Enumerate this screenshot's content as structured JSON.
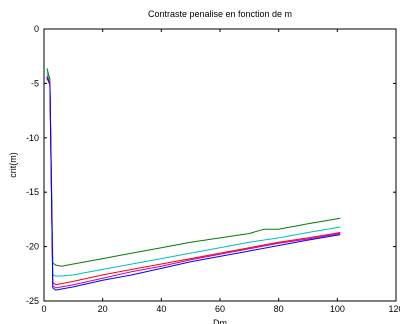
{
  "chart_data": {
    "type": "line",
    "title": "Contraste penalise en fonction de m",
    "xlabel": "Dm",
    "ylabel": "crit(m)",
    "xlim": [
      0,
      120
    ],
    "ylim": [
      -25,
      0
    ],
    "xticks": [
      0,
      20,
      40,
      60,
      80,
      100,
      120
    ],
    "yticks": [
      0,
      -5,
      -10,
      -15,
      -20,
      -25
    ],
    "grid": false,
    "series": [
      {
        "color": "#007f00",
        "x": [
          1,
          2,
          3,
          4,
          6,
          10,
          20,
          30,
          40,
          50,
          60,
          70,
          75,
          80,
          90,
          101
        ],
        "y": [
          -3.6,
          -4.6,
          -21.5,
          -21.7,
          -21.8,
          -21.6,
          -21.1,
          -20.6,
          -20.1,
          -19.6,
          -19.2,
          -18.8,
          -18.4,
          -18.4,
          -17.9,
          -17.4
        ]
      },
      {
        "color": "#00bfbf",
        "x": [
          1,
          2,
          3,
          4,
          6,
          10,
          20,
          30,
          40,
          50,
          60,
          70,
          80,
          90,
          101
        ],
        "y": [
          -4.0,
          -4.8,
          -22.6,
          -22.7,
          -22.7,
          -22.6,
          -22.1,
          -21.6,
          -21.1,
          -20.6,
          -20.1,
          -19.6,
          -19.2,
          -18.7,
          -18.2
        ]
      },
      {
        "color": "#ff0000",
        "x": [
          1,
          2,
          3,
          4,
          6,
          10,
          20,
          30,
          40,
          50,
          60,
          70,
          80,
          90,
          101
        ],
        "y": [
          -4.3,
          -4.9,
          -23.3,
          -23.5,
          -23.4,
          -23.2,
          -22.6,
          -22.1,
          -21.6,
          -21.1,
          -20.6,
          -20.1,
          -19.6,
          -19.2,
          -18.7
        ]
      },
      {
        "color": "#bf00bf",
        "x": [
          1,
          2,
          3,
          4,
          6,
          10,
          20,
          30,
          40,
          50,
          60,
          70,
          80,
          90,
          101
        ],
        "y": [
          -4.4,
          -5.0,
          -23.6,
          -23.8,
          -23.7,
          -23.5,
          -22.9,
          -22.3,
          -21.8,
          -21.2,
          -20.7,
          -20.2,
          -19.7,
          -19.3,
          -18.8
        ]
      },
      {
        "color": "#0000ff",
        "x": [
          1,
          2,
          3,
          4,
          6,
          10,
          20,
          30,
          40,
          50,
          60,
          70,
          80,
          90,
          101
        ],
        "y": [
          -4.5,
          -5.1,
          -23.8,
          -24.0,
          -23.9,
          -23.7,
          -23.1,
          -22.6,
          -22.0,
          -21.4,
          -20.9,
          -20.4,
          -19.9,
          -19.4,
          -18.9
        ]
      }
    ]
  }
}
